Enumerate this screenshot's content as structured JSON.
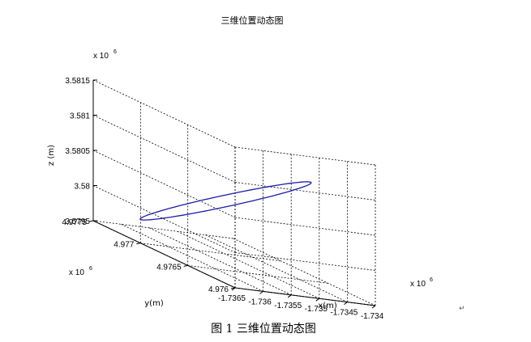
{
  "chart_data": {
    "type": "line",
    "title": "三维位置动态图",
    "xlabel": "x(m)",
    "ylabel": "y(m)",
    "zlabel": "z (m)",
    "x_multiplier": "x 10",
    "x_multiplier_exp": "6",
    "y_multiplier": "x 10",
    "y_multiplier_exp": "6",
    "z_multiplier": "x 10",
    "z_multiplier_exp": "6",
    "xlim": [
      -1.7365,
      -1.734
    ],
    "ylim": [
      4.976,
      4.9775
    ],
    "zlim": [
      3.5795,
      3.5815
    ],
    "x_ticks": [
      "-1.7365",
      "-1.736",
      "-1.7355",
      "-1.735",
      "-1.7345",
      "-1.734"
    ],
    "y_ticks": [
      "4.976",
      "4.9765",
      "4.977",
      "4.9775"
    ],
    "z_ticks": [
      "3.5795",
      "3.58",
      "3.5805",
      "3.581",
      "3.5815"
    ],
    "grid": true,
    "series_color": "#1a1aa8",
    "series": [
      {
        "start": [
          -1.736,
          4.9773,
          3.5797
        ],
        "end": [
          -1.7343,
          4.9765,
          3.5809
        ],
        "width": 0.000165
      }
    ]
  },
  "caption": "图 1  三维位置动态图",
  "caption_mark": "↵",
  "corner_mark": "↵"
}
